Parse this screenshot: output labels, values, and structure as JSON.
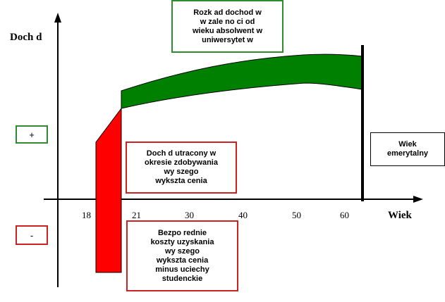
{
  "title_box": "Rozk ad dochod  w\nw zale no ci od\nwieku absolwent  w\nuniwersytet  w",
  "y_axis_label": "Doch d",
  "x_axis_label": "Wiek",
  "plus_box": "+",
  "minus_box": "-",
  "retirement_box": "Wiek\nemerytalny",
  "income_lost_box": "Doch d  utracony w\nokresie zdobywania\nwy szego\nwykszta cenia",
  "direct_costs_box": "Bezpo  rednie\nkoszty uzyskania\nwy  szego\nwykszta cenia\nminus uciechy\nstudenckie",
  "x_ticks": [
    "18",
    "21",
    "30",
    "40",
    "50",
    "60"
  ],
  "colors": {
    "green_fill": "#008000",
    "red_fill": "#ff0000",
    "green_border": "#2e8b2e",
    "red_border": "#cc2222",
    "axis": "#000000"
  }
}
